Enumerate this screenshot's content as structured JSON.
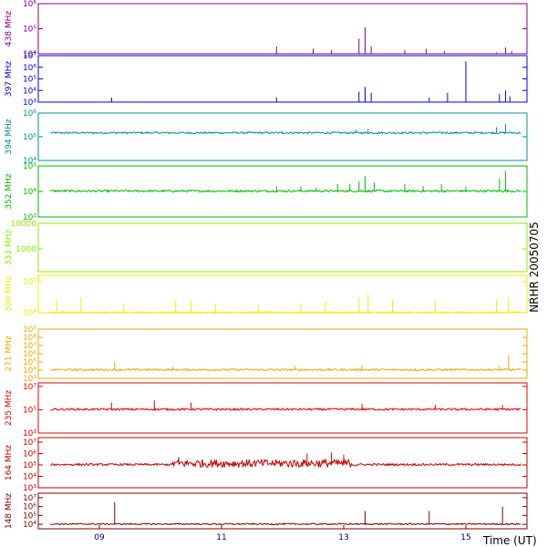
{
  "side_title": "NRHR 20050705",
  "time_label": "Time (UT)",
  "chart_data": [
    {
      "type": "line",
      "label": "438 MHz",
      "color": "#800080",
      "y_ticks": [
        "10⁴",
        "10⁵",
        "10⁶"
      ],
      "y_tick_vals": [
        4,
        5,
        6
      ],
      "ylim": [
        4,
        6
      ],
      "scale": "log",
      "baseline": 4.0,
      "spikes": [
        [
          11.9,
          4.3
        ],
        [
          12.5,
          4.2
        ],
        [
          12.8,
          4.15
        ],
        [
          13.25,
          4.6
        ],
        [
          13.35,
          5.05
        ],
        [
          13.45,
          4.3
        ],
        [
          14.0,
          4.15
        ],
        [
          14.35,
          4.2
        ],
        [
          14.65,
          4.1
        ],
        [
          15.5,
          4.05
        ],
        [
          15.65,
          4.25
        ],
        [
          15.75,
          4.1
        ]
      ]
    },
    {
      "type": "line",
      "label": "397 MHz",
      "color": "#0000e0",
      "y_ticks": [
        "10³",
        "10⁴",
        "10⁵",
        "10⁶",
        "10⁷"
      ],
      "y_tick_vals": [
        3,
        4,
        5,
        6,
        7
      ],
      "ylim": [
        3,
        7
      ],
      "scale": "log",
      "baseline": 3.0,
      "spikes": [
        [
          9.2,
          3.4
        ],
        [
          11.9,
          3.4
        ],
        [
          13.25,
          3.9
        ],
        [
          13.35,
          4.3
        ],
        [
          13.45,
          3.8
        ],
        [
          14.4,
          3.4
        ],
        [
          14.7,
          3.8
        ],
        [
          15.0,
          6.5
        ],
        [
          15.55,
          3.7
        ],
        [
          15.65,
          4.0
        ],
        [
          15.72,
          3.5
        ]
      ]
    },
    {
      "type": "line",
      "label": "394 MHz",
      "color": "#009090",
      "y_ticks": [
        "10⁴",
        "10⁵",
        "10⁶"
      ],
      "y_tick_vals": [
        4,
        5,
        6
      ],
      "ylim": [
        4,
        6
      ],
      "scale": "log",
      "baseline": 5.15,
      "spikes": [
        [
          12.0,
          5.25
        ],
        [
          13.2,
          5.3
        ],
        [
          13.4,
          5.35
        ],
        [
          15.5,
          5.4
        ],
        [
          15.65,
          5.55
        ]
      ]
    },
    {
      "type": "line",
      "label": "352 MHz",
      "color": "#00bb00",
      "y_ticks": [
        "10³",
        "10⁴",
        "10⁵"
      ],
      "y_tick_vals": [
        3,
        4,
        5
      ],
      "ylim": [
        3,
        5
      ],
      "scale": "log",
      "baseline": 4.0,
      "spikes": [
        [
          11.9,
          4.2
        ],
        [
          12.3,
          4.2
        ],
        [
          12.55,
          4.15
        ],
        [
          12.9,
          4.3
        ],
        [
          13.1,
          4.3
        ],
        [
          13.25,
          4.4
        ],
        [
          13.35,
          4.6
        ],
        [
          13.5,
          4.35
        ],
        [
          14.0,
          4.3
        ],
        [
          14.3,
          4.2
        ],
        [
          14.6,
          4.3
        ],
        [
          15.0,
          4.2
        ],
        [
          15.55,
          4.5
        ],
        [
          15.65,
          4.8
        ]
      ]
    },
    {
      "type": "line",
      "label": "333 MHz",
      "color": "#88ee00",
      "y_ticks": [
        "1000",
        "10000"
      ],
      "y_tick_vals": [
        3,
        4
      ],
      "ylim": [
        2.1,
        4.0
      ],
      "scale": "log",
      "baseline": 4.0,
      "spikes": []
    },
    {
      "type": "line",
      "label": "300 MHz",
      "color": "#eeee00",
      "y_ticks": [
        "10⁴",
        "10⁵"
      ],
      "y_tick_vals": [
        4,
        5
      ],
      "ylim": [
        4,
        5.2
      ],
      "scale": "log",
      "baseline": 4.0,
      "spikes": [
        [
          8.3,
          4.4
        ],
        [
          8.7,
          4.5
        ],
        [
          9.4,
          4.3
        ],
        [
          10.25,
          4.4
        ],
        [
          10.5,
          4.4
        ],
        [
          10.9,
          4.3
        ],
        [
          11.6,
          4.25
        ],
        [
          12.3,
          4.3
        ],
        [
          12.7,
          4.35
        ],
        [
          13.25,
          4.5
        ],
        [
          13.4,
          4.6
        ],
        [
          13.8,
          4.4
        ],
        [
          14.5,
          4.35
        ],
        [
          15.5,
          4.4
        ],
        [
          15.7,
          4.5
        ]
      ]
    },
    {
      "type": "line",
      "label": "271 MHz",
      "color": "#f0a800",
      "y_ticks": [
        "10³",
        "10⁴",
        "10⁵",
        "10⁶",
        "10⁷",
        "10⁸",
        "10⁹"
      ],
      "y_tick_vals": [
        3,
        4,
        5,
        6,
        7,
        8,
        9
      ],
      "ylim": [
        3,
        9
      ],
      "scale": "log",
      "baseline": 4.0,
      "spikes": [
        [
          9.25,
          5.0
        ],
        [
          10.2,
          4.4
        ],
        [
          12.2,
          4.5
        ],
        [
          13.3,
          4.6
        ],
        [
          15.55,
          4.5
        ],
        [
          15.7,
          5.8
        ]
      ]
    },
    {
      "type": "line",
      "label": "235 MHz",
      "color": "#e80000",
      "y_ticks": [
        "10³",
        "10⁵",
        "10⁷"
      ],
      "y_tick_vals": [
        3,
        5,
        7
      ],
      "ylim": [
        3,
        7.3
      ],
      "scale": "log",
      "baseline": 5.0,
      "spikes": [
        [
          9.2,
          5.6
        ],
        [
          9.9,
          5.8
        ],
        [
          10.5,
          5.6
        ],
        [
          13.3,
          5.5
        ],
        [
          14.5,
          5.4
        ],
        [
          15.6,
          5.4
        ]
      ]
    },
    {
      "type": "line",
      "label": "164 MHz",
      "color": "#c00000",
      "y_ticks": [
        "10³",
        "10⁴",
        "10⁵",
        "10⁶",
        "10⁷"
      ],
      "y_tick_vals": [
        3,
        4,
        5,
        6,
        7
      ],
      "ylim": [
        3,
        7.4
      ],
      "scale": "log",
      "baseline": 5.0,
      "spikes": [
        [
          10.3,
          5.7
        ],
        [
          12.4,
          6.0
        ],
        [
          12.8,
          6.1
        ],
        [
          13.0,
          5.9
        ]
      ]
    },
    {
      "type": "line",
      "label": "148 MHz",
      "color": "#800000",
      "y_ticks": [
        "10⁴",
        "10⁵",
        "10⁶",
        "10⁷"
      ],
      "y_tick_vals": [
        4,
        5,
        6,
        7
      ],
      "ylim": [
        3.5,
        7.5
      ],
      "scale": "log",
      "baseline": 4.0,
      "spikes": [
        [
          9.25,
          6.5
        ],
        [
          13.35,
          5.5
        ],
        [
          14.4,
          5.5
        ],
        [
          15.6,
          6.0
        ]
      ]
    }
  ],
  "x_axis": {
    "xlim": [
      8.0,
      16.0
    ],
    "ticks": [
      9,
      11,
      13,
      15
    ],
    "tick_labels": [
      "09",
      "11",
      "13",
      "15"
    ]
  }
}
